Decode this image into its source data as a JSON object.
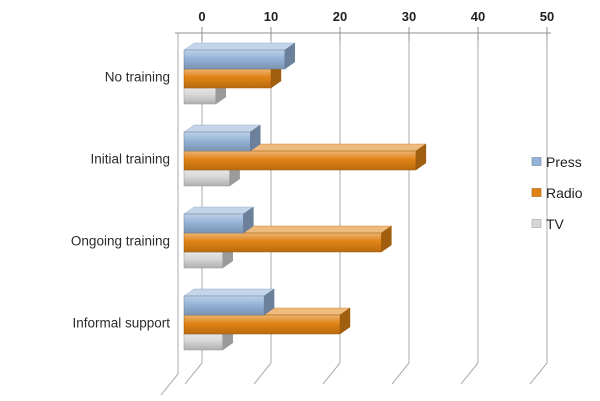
{
  "chart_data": {
    "type": "bar",
    "style": "3d-horizontal-clustered",
    "title": "",
    "categories": [
      "No training",
      "Initial training",
      "Ongoing training",
      "Informal support"
    ],
    "series": [
      {
        "name": "Press",
        "color": "#95b3d7",
        "values": [
          12,
          7,
          6,
          9
        ]
      },
      {
        "name": "Radio",
        "color": "#e08214",
        "values": [
          10,
          31,
          26,
          20
        ]
      },
      {
        "name": "TV",
        "color": "#d6d6d6",
        "values": [
          2,
          4,
          3,
          3
        ]
      }
    ],
    "xlabel": "",
    "ylabel": "",
    "xlim": [
      0,
      50
    ],
    "x_ticks": [
      0,
      10,
      20,
      30,
      40,
      50
    ],
    "x_tick_labels": [
      "0",
      "10",
      "20",
      "30",
      "40",
      "50"
    ],
    "axis_position": "top",
    "grid": true,
    "legend": {
      "position": "right",
      "entries": [
        "Press",
        "Radio",
        "TV"
      ]
    },
    "colors": {
      "grid_line": "#ababab",
      "axis_line": "#8f8f8f",
      "text": "#262626",
      "background": "#ffffff"
    }
  }
}
